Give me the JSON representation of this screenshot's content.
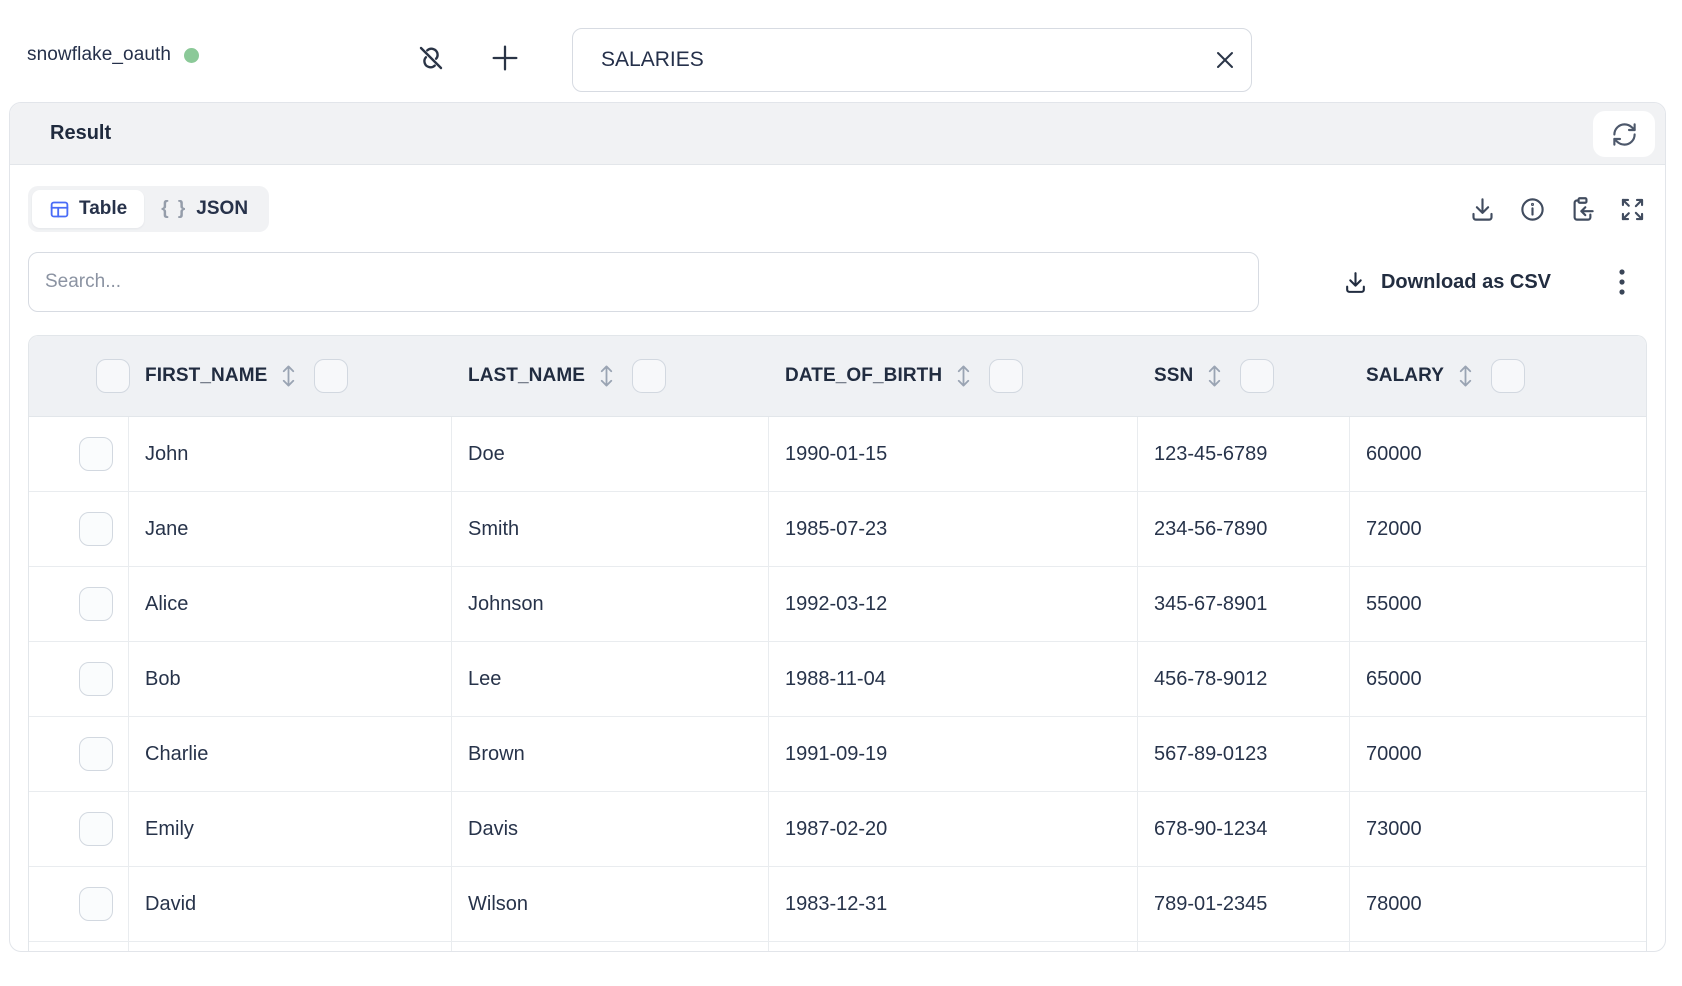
{
  "connection": {
    "name": "snowflake_oauth",
    "status": "connected",
    "status_color": "#8bc998"
  },
  "topbar": {
    "table_name_value": "SALARIES",
    "icons": [
      "unlink-icon",
      "plus-icon",
      "clear-x-icon"
    ]
  },
  "result_panel": {
    "title": "Result",
    "refresh_icon": "refresh-icon",
    "tabs": [
      {
        "label": "Table",
        "icon": "table-grid-icon",
        "active": true
      },
      {
        "label": "JSON",
        "glyph": "{ }",
        "icon": "braces-icon",
        "active": false
      }
    ],
    "tool_icons": [
      "download-icon",
      "info-icon",
      "clipboard-paste-icon",
      "expand-icon"
    ]
  },
  "toolbar": {
    "search_placeholder": "Search...",
    "download_csv_label": "Download as CSV",
    "download_csv_icon": "download-icon",
    "menu_icon": "kebab-menu-icon"
  },
  "table": {
    "columns": [
      "FIRST_NAME",
      "LAST_NAME",
      "DATE_OF_BIRTH",
      "SSN",
      "SALARY"
    ],
    "header_icons": [
      "sort-icon",
      "column-checkbox"
    ],
    "rows": [
      [
        "John",
        "Doe",
        "1990-01-15",
        "123-45-6789",
        "60000"
      ],
      [
        "Jane",
        "Smith",
        "1985-07-23",
        "234-56-7890",
        "72000"
      ],
      [
        "Alice",
        "Johnson",
        "1992-03-12",
        "345-67-8901",
        "55000"
      ],
      [
        "Bob",
        "Lee",
        "1988-11-04",
        "456-78-9012",
        "65000"
      ],
      [
        "Charlie",
        "Brown",
        "1991-09-19",
        "567-89-0123",
        "70000"
      ],
      [
        "Emily",
        "Davis",
        "1987-02-20",
        "678-90-1234",
        "73000"
      ],
      [
        "David",
        "Wilson",
        "1983-12-31",
        "789-01-2345",
        "78000"
      ]
    ]
  },
  "colors": {
    "accent_blue": "#4a6cf7",
    "status_green": "#8bc998",
    "text_dark": "#222d40",
    "text_muted": "#8b93a2",
    "band_bg": "#f1f2f4",
    "table_header_bg": "#eff1f4",
    "border": "#e2e6ea"
  }
}
